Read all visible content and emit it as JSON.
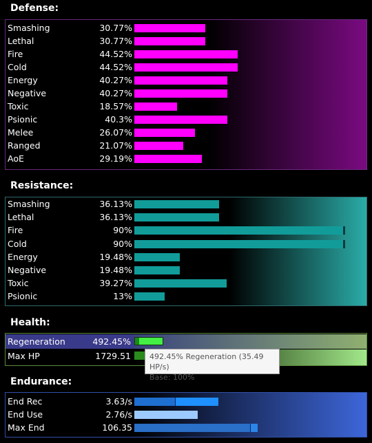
{
  "defense": {
    "title": "Defense:",
    "color": "#ff00ff",
    "rows": [
      {
        "label": "Smashing",
        "value": "30.77%",
        "level": 30.77
      },
      {
        "label": "Lethal",
        "value": "30.77%",
        "level": 30.77
      },
      {
        "label": "Fire",
        "value": "44.52%",
        "level": 44.52
      },
      {
        "label": "Cold",
        "value": "44.52%",
        "level": 44.52
      },
      {
        "label": "Energy",
        "value": "40.27%",
        "level": 40.27
      },
      {
        "label": "Negative",
        "value": "40.27%",
        "level": 40.27
      },
      {
        "label": "Toxic",
        "value": "18.57%",
        "level": 18.57
      },
      {
        "label": "Psionic",
        "value": "40.3%",
        "level": 40.3
      },
      {
        "label": "Melee",
        "value": "26.07%",
        "level": 26.07
      },
      {
        "label": "Ranged",
        "value": "21.07%",
        "level": 21.07
      },
      {
        "label": "AoE",
        "value": "29.19%",
        "level": 29.19
      }
    ]
  },
  "resistance": {
    "title": "Resistance:",
    "color": "#119c9a",
    "rows": [
      {
        "label": "Smashing",
        "value": "36.13%",
        "level": 36.13
      },
      {
        "label": "Lethal",
        "value": "36.13%",
        "level": 36.13
      },
      {
        "label": "Fire",
        "value": "90%",
        "level": 90
      },
      {
        "label": "Cold",
        "value": "90%",
        "level": 90
      },
      {
        "label": "Energy",
        "value": "19.48%",
        "level": 19.48
      },
      {
        "label": "Negative",
        "value": "19.48%",
        "level": 19.48
      },
      {
        "label": "Toxic",
        "value": "39.27%",
        "level": 39.27
      },
      {
        "label": "Psionic",
        "value": "13%",
        "level": 13
      }
    ]
  },
  "health": {
    "title": "Health:",
    "color": "#44ee44",
    "rows": [
      {
        "label": "Regeneration",
        "value": "492.45%"
      },
      {
        "label": "Max HP",
        "value": "1729.51"
      }
    ],
    "tooltip": {
      "line1": "492.45% Regeneration (35.49 HP/s)",
      "line2": "Base: 100%"
    }
  },
  "endurance": {
    "title": "Endurance:",
    "rows": [
      {
        "label": "End Rec",
        "value": "3.63/s"
      },
      {
        "label": "End Use",
        "value": "2.76/s"
      },
      {
        "label": "Max End",
        "value": "106.35"
      }
    ]
  }
}
